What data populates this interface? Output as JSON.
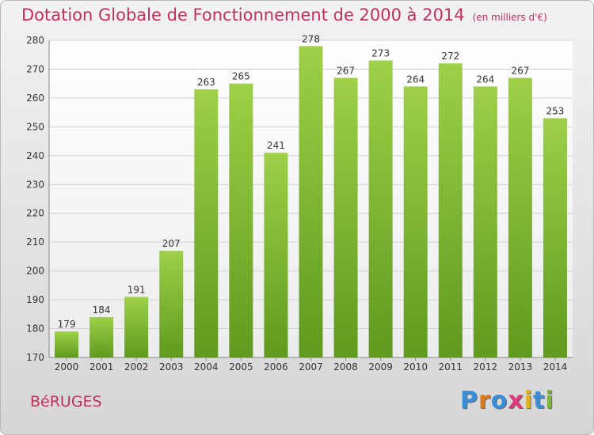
{
  "chart_data": {
    "type": "bar",
    "title": "Dotation Globale de Fonctionnement de 2000 à 2014",
    "unit_note": "(en milliers d'€)",
    "categories": [
      "2000",
      "2001",
      "2002",
      "2003",
      "2004",
      "2005",
      "2006",
      "2007",
      "2008",
      "2009",
      "2010",
      "2011",
      "2012",
      "2013",
      "2014"
    ],
    "values": [
      179,
      184,
      191,
      207,
      263,
      265,
      241,
      278,
      267,
      273,
      264,
      272,
      264,
      267,
      253
    ],
    "ylim": [
      170,
      280
    ],
    "yticks": [
      170,
      180,
      190,
      200,
      210,
      220,
      230,
      240,
      250,
      260,
      270,
      280
    ],
    "grid": true,
    "bar_color": "#7ab830",
    "bar_color_light": "#9ed048",
    "bar_color_dark": "#5f9a1e"
  },
  "commune": "BéRUGES",
  "brand": {
    "letters": [
      "P",
      "r",
      "o",
      "x",
      "i",
      "t",
      "i"
    ],
    "colors": [
      "#3a8ed8",
      "#e07a1a",
      "#3a8ed8",
      "#e03a7a",
      "#e0b21a",
      "#3a8ed8",
      "#7ab830"
    ]
  }
}
